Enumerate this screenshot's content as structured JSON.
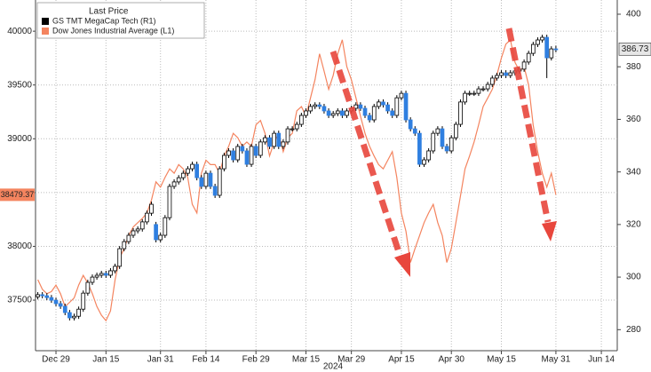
{
  "chart_data": {
    "type": "candlestick",
    "legend_title": "Last Price",
    "legend": "upper left",
    "xlabel": "2024",
    "grid": true,
    "categories": [
      null,
      null,
      null,
      null,
      "Dec 29",
      null,
      null,
      null,
      null,
      null,
      null,
      null,
      null,
      null,
      null,
      "Jan 15",
      null,
      null,
      null,
      null,
      null,
      null,
      null,
      null,
      null,
      null,
      null,
      "Jan 31",
      null,
      null,
      null,
      null,
      null,
      null,
      null,
      null,
      null,
      "Feb 14",
      null,
      null,
      null,
      null,
      null,
      null,
      null,
      null,
      null,
      null,
      "Feb 29",
      null,
      null,
      null,
      null,
      null,
      null,
      null,
      null,
      null,
      null,
      "Mar 15",
      null,
      null,
      null,
      null,
      null,
      null,
      null,
      null,
      null,
      "Mar 29",
      null,
      null,
      null,
      null,
      null,
      null,
      null,
      null,
      null,
      null,
      "Apr 15",
      null,
      null,
      null,
      null,
      null,
      null,
      null,
      null,
      null,
      null,
      "Apr 30",
      null,
      null,
      null,
      null,
      null,
      null,
      null,
      null,
      null,
      null,
      "May 15",
      null,
      null,
      null,
      null,
      null,
      null,
      null,
      null,
      null,
      null,
      null,
      "May 31",
      null,
      null,
      null,
      null,
      null,
      null,
      null,
      null,
      null,
      "Jun 14",
      null,
      null,
      null
    ],
    "ylim": [
      37030,
      40290
    ],
    "yticks": [
      37500,
      38000,
      38500,
      39000,
      39500,
      40000
    ],
    "y2lim": [
      272,
      405.4
    ],
    "y2ticks": [
      280,
      300,
      320,
      340,
      360,
      380,
      400
    ],
    "series": [
      {
        "name": "GS TMT MegaCap Tech (R1)",
        "type": "candlestick",
        "axis": "y2",
        "color": "#000000",
        "up_color": "#ffffff",
        "down_color": "#2f7fe0",
        "open": [
          292.5,
          293.3,
          292.9,
          292.2,
          291.2,
          289.9,
          288.9,
          286.5,
          284.5,
          285.1,
          287.8,
          293.9,
          298.0,
          300.0,
          300.7,
          301.4,
          300.7,
          302.4,
          304.1,
          310.8,
          313.5,
          315.9,
          317.6,
          318.3,
          321.0,
          324.3,
          320.0,
          314.2,
          315.9,
          322.6,
          334.5,
          336.2,
          337.8,
          339.5,
          341.2,
          342.9,
          337.8,
          334.5,
          339.5,
          334.5,
          331.1,
          341.2,
          346.3,
          348.0,
          344.6,
          349.7,
          348.0,
          342.9,
          349.7,
          346.3,
          351.4,
          353.0,
          349.7,
          354.7,
          349.7,
          351.4,
          356.4,
          356.4,
          358.1,
          361.5,
          363.2,
          364.9,
          365.5,
          364.9,
          363.2,
          361.5,
          362.2,
          363.2,
          361.5,
          363.2,
          364.2,
          365.5,
          364.2,
          361.5,
          359.8,
          364.9,
          366.6,
          365.5,
          363.2,
          361.5,
          368.2,
          369.9,
          359.8,
          356.4,
          354.7,
          342.9,
          344.6,
          348.0,
          354.7,
          356.4,
          349.7,
          348.0,
          353.0,
          358.1,
          366.6,
          369.9,
          369.9,
          369.9,
          371.6,
          371.6,
          373.3,
          375.7,
          376.7,
          377.7,
          376.7,
          377.7,
          378.4,
          379.1,
          381.8,
          385.1,
          388.5,
          390.2,
          391.2,
          383.4,
          386.8,
          null,
          null,
          null,
          null,
          null,
          null,
          null,
          null,
          null,
          null,
          null,
          null,
          null
        ],
        "high": [
          294.3,
          294.3,
          293.9,
          293.2,
          292.2,
          290.9,
          289.9,
          287.5,
          286.1,
          288.8,
          294.9,
          299.0,
          301.0,
          301.7,
          302.4,
          302.4,
          303.4,
          305.1,
          311.8,
          314.5,
          316.9,
          318.6,
          319.3,
          322.0,
          325.3,
          328.7,
          321.0,
          316.9,
          323.6,
          335.5,
          337.2,
          338.8,
          340.5,
          342.2,
          343.9,
          343.9,
          338.8,
          340.5,
          340.5,
          335.5,
          342.2,
          347.3,
          349.0,
          349.0,
          350.7,
          350.7,
          349.0,
          350.7,
          350.7,
          352.4,
          354.0,
          354.0,
          355.7,
          355.7,
          352.4,
          357.4,
          357.4,
          359.1,
          362.5,
          364.2,
          365.9,
          366.5,
          366.5,
          365.9,
          364.2,
          363.2,
          364.2,
          364.2,
          364.2,
          365.2,
          366.5,
          366.5,
          365.2,
          362.5,
          365.9,
          367.6,
          367.6,
          366.5,
          364.2,
          369.2,
          370.9,
          370.9,
          360.8,
          357.4,
          355.7,
          345.6,
          349.0,
          355.7,
          357.4,
          357.4,
          350.7,
          354.0,
          359.1,
          367.6,
          370.9,
          370.9,
          370.9,
          372.6,
          372.6,
          374.3,
          376.7,
          377.7,
          378.7,
          378.7,
          378.7,
          379.4,
          380.1,
          382.8,
          386.1,
          389.5,
          391.2,
          392.2,
          392.2,
          387.8,
          388.0,
          null,
          null,
          null,
          null,
          null,
          null,
          null,
          null,
          null,
          null,
          null,
          null,
          null
        ],
        "low": [
          291.5,
          291.9,
          291.2,
          290.2,
          288.9,
          287.9,
          285.5,
          283.5,
          283.5,
          284.1,
          286.8,
          292.9,
          297.0,
          299.0,
          299.7,
          299.7,
          299.7,
          301.4,
          303.1,
          309.8,
          312.5,
          314.9,
          316.6,
          317.3,
          320.0,
          323.3,
          313.2,
          313.2,
          314.9,
          321.6,
          333.5,
          335.2,
          336.8,
          338.5,
          340.2,
          336.8,
          333.5,
          333.5,
          333.5,
          330.1,
          330.1,
          340.2,
          345.3,
          343.6,
          343.6,
          347.0,
          341.9,
          341.9,
          345.3,
          345.3,
          350.4,
          348.7,
          348.7,
          348.7,
          348.7,
          350.4,
          355.4,
          355.4,
          357.1,
          360.5,
          362.2,
          363.9,
          363.9,
          362.2,
          360.5,
          360.5,
          361.2,
          360.5,
          360.5,
          362.2,
          363.2,
          363.2,
          360.5,
          358.8,
          358.8,
          363.9,
          364.5,
          362.2,
          360.5,
          360.5,
          367.2,
          358.8,
          355.4,
          353.7,
          341.9,
          341.9,
          343.6,
          347.0,
          353.7,
          348.7,
          347.0,
          347.0,
          352.0,
          357.1,
          365.6,
          368.9,
          368.9,
          368.9,
          370.6,
          370.6,
          372.3,
          374.7,
          375.7,
          375.7,
          375.7,
          376.7,
          377.4,
          378.1,
          380.8,
          384.1,
          387.5,
          389.2,
          375.7,
          382.4,
          385.5,
          null,
          null,
          null,
          null,
          null,
          null,
          null,
          null,
          null,
          null,
          null,
          null,
          null
        ],
        "close": [
          293.3,
          292.9,
          292.2,
          291.2,
          289.9,
          288.9,
          286.5,
          284.5,
          285.1,
          287.8,
          293.9,
          298.0,
          300.0,
          300.7,
          301.4,
          300.7,
          302.4,
          304.1,
          310.8,
          313.5,
          315.9,
          317.6,
          318.3,
          321.0,
          324.3,
          327.7,
          314.2,
          315.9,
          322.6,
          334.5,
          336.2,
          337.8,
          339.5,
          341.2,
          342.9,
          337.8,
          334.5,
          339.5,
          334.5,
          331.1,
          341.2,
          346.3,
          348.0,
          344.6,
          349.7,
          348.0,
          342.9,
          349.7,
          346.3,
          351.4,
          353.0,
          349.7,
          354.7,
          349.7,
          351.4,
          356.4,
          356.4,
          358.1,
          361.5,
          363.2,
          364.9,
          365.5,
          364.9,
          363.2,
          361.5,
          362.2,
          363.2,
          361.5,
          363.2,
          364.2,
          365.5,
          364.2,
          361.5,
          359.8,
          364.9,
          366.6,
          365.5,
          363.2,
          361.5,
          368.2,
          369.9,
          359.8,
          356.4,
          354.7,
          342.9,
          344.6,
          348.0,
          354.7,
          356.4,
          349.7,
          348.0,
          353.0,
          358.1,
          366.6,
          369.9,
          369.9,
          369.9,
          371.6,
          371.6,
          373.3,
          375.7,
          376.7,
          377.7,
          376.7,
          377.7,
          378.4,
          379.1,
          381.8,
          385.1,
          388.5,
          390.2,
          391.2,
          383.4,
          386.8,
          386.73,
          null,
          null,
          null,
          null,
          null,
          null,
          null,
          null,
          null,
          null,
          null,
          null,
          null
        ]
      },
      {
        "name": "Dow Jones Industrial Average (L1)",
        "type": "line",
        "axis": "y",
        "color": "#f4845f",
        "values": [
          37690,
          37600,
          37560,
          37580,
          37640,
          37560,
          37440,
          37480,
          37520,
          37640,
          37730,
          37660,
          37560,
          37440,
          37360,
          37310,
          37400,
          37690,
          37890,
          37980,
          38100,
          38180,
          38220,
          38260,
          38310,
          38430,
          38600,
          38550,
          38640,
          38720,
          38680,
          38760,
          38720,
          38640,
          38390,
          38310,
          38680,
          38800,
          38760,
          38760,
          38680,
          38840,
          38930,
          39050,
          39010,
          38930,
          38970,
          38930,
          39130,
          39170,
          39050,
          38840,
          38970,
          39050,
          38880,
          39010,
          39050,
          39260,
          39300,
          39210,
          39380,
          39550,
          39790,
          39630,
          39460,
          39590,
          39790,
          39920,
          39670,
          39550,
          39380,
          39210,
          39050,
          38930,
          38840,
          38760,
          38720,
          38800,
          38880,
          38640,
          38310,
          38140,
          37850,
          37980,
          38100,
          38220,
          38310,
          38390,
          38220,
          38100,
          37850,
          37980,
          38220,
          38470,
          38720,
          38840,
          38970,
          39130,
          39300,
          39380,
          39460,
          39590,
          39750,
          39880,
          39920,
          39710,
          39630,
          39670,
          39500,
          39130,
          38880,
          38680,
          38550,
          38680,
          38479.37,
          null,
          null,
          null,
          null,
          null,
          null,
          null,
          null,
          null,
          null,
          null,
          null,
          null
        ]
      }
    ]
  }
}
